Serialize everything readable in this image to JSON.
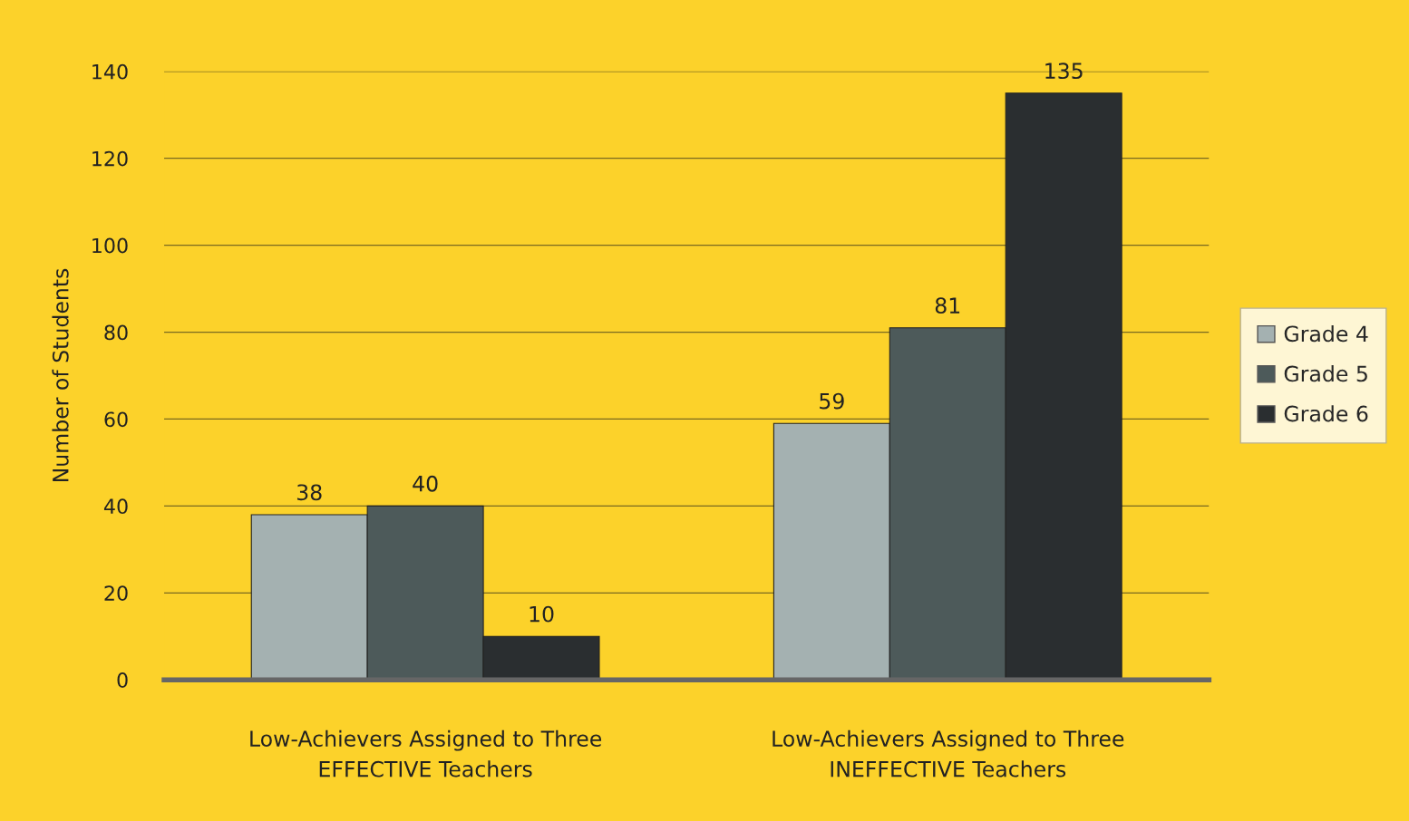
{
  "chart_data": {
    "type": "bar",
    "ylabel": "Number of Students",
    "categories": [
      "Low-Achievers Assigned to Three\nEFFECTIVE Teachers",
      "Low-Achievers Assigned to Three\nINEFFECTIVE Teachers"
    ],
    "series": [
      {
        "name": "Grade 4",
        "color": "#a4b1b1",
        "values": [
          38,
          59
        ]
      },
      {
        "name": "Grade 5",
        "color": "#4d5a5a",
        "values": [
          40,
          81
        ]
      },
      {
        "name": "Grade 6",
        "color": "#2a2e30",
        "values": [
          10,
          135
        ]
      }
    ],
    "ylim": [
      0,
      140
    ],
    "yticks": [
      0,
      20,
      40,
      60,
      80,
      100,
      120,
      140
    ],
    "grid": "y",
    "legend": "right",
    "data_labels": true
  }
}
